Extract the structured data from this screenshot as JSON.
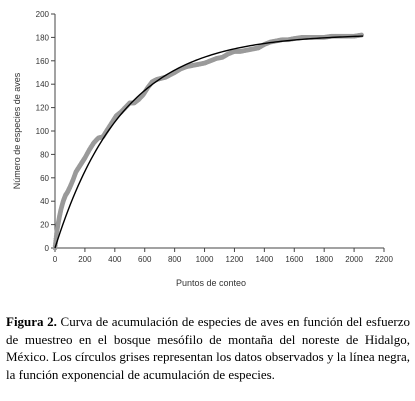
{
  "chart_data": {
    "type": "line",
    "xlabel": "Puntos de conteo",
    "ylabel": "Número de especies de aves",
    "xlim": [
      0,
      2200
    ],
    "ylim": [
      0,
      200
    ],
    "x_ticks": [
      "0",
      "200",
      "400",
      "600",
      "800",
      "1000",
      "1200",
      "1400",
      "1600",
      "1800",
      "2000",
      "2200"
    ],
    "y_ticks": [
      "0",
      "20",
      "40",
      "60",
      "80",
      "100",
      "120",
      "140",
      "160",
      "180",
      "200"
    ],
    "grid": false,
    "series": [
      {
        "style": "points",
        "color": "#9a9a9a",
        "x": [
          0,
          10,
          20,
          30,
          40,
          55,
          70,
          85,
          100,
          120,
          140,
          160,
          180,
          200,
          230,
          260,
          290,
          320,
          350,
          380,
          410,
          440,
          470,
          500,
          530,
          560,
          590,
          620,
          650,
          680,
          710,
          740,
          770,
          800,
          840,
          880,
          920,
          960,
          1000,
          1040,
          1080,
          1120,
          1160,
          1200,
          1240,
          1280,
          1320,
          1360,
          1400,
          1440,
          1480,
          1520,
          1560,
          1600,
          1650,
          1700,
          1750,
          1800,
          1850,
          1900,
          1950,
          2000,
          2050
        ],
        "y": [
          0,
          12,
          20,
          27,
          33,
          40,
          45,
          48,
          52,
          58,
          65,
          69,
          73,
          77,
          84,
          90,
          94,
          95,
          101,
          107,
          113,
          116,
          120,
          124,
          124,
          127,
          131,
          137,
          142,
          144,
          145,
          146,
          148,
          150,
          153,
          155,
          156,
          157,
          158,
          160,
          162,
          163,
          166,
          168,
          168,
          169,
          170,
          171,
          174,
          176,
          177,
          178,
          178,
          179,
          180,
          180,
          180,
          180,
          181,
          181,
          181,
          181,
          182
        ]
      },
      {
        "style": "line",
        "color": "#000000",
        "model": {
          "asymptote": 183,
          "rate": 0.00222
        },
        "x_range": [
          0,
          2060
        ]
      }
    ]
  },
  "caption": {
    "label": "Figura 2.",
    "text": " Curva de acumulación de especies de aves en función del esfuerzo de muestreo en el bosque mesófilo de montaña del noreste de Hidalgo, México. Los círculos grises representan los datos observados y la línea negra, la función exponencial de acumulación de especies."
  }
}
